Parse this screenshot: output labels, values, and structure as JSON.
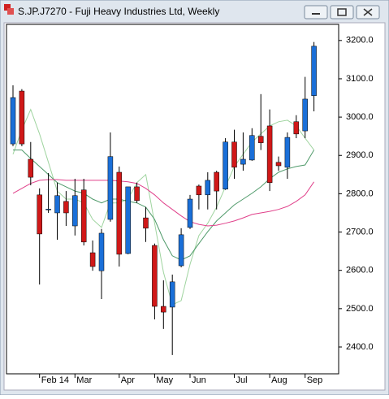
{
  "window": {
    "title": "S.JP.J7270 - Fuji Heavy Industries Ltd, Weekly"
  },
  "chart_data": {
    "type": "candlestick",
    "categories": [
      "Feb 14",
      "Mar",
      "Apr",
      "May",
      "Jun",
      "Jul",
      "Aug",
      "Sep"
    ],
    "category_index": [
      3,
      7,
      12,
      16,
      20,
      25,
      29,
      33
    ],
    "open": [
      2930,
      3068,
      2890,
      2797,
      2759,
      2750,
      2780,
      2716,
      2810,
      2646,
      2599,
      2733,
      2856,
      2644,
      2818,
      2737,
      2665,
      2506,
      2504,
      2612,
      2712,
      2820,
      2797,
      2856,
      2812,
      2935,
      2877,
      2888,
      2950,
      2977,
      2882,
      2869,
      2988,
      2964,
      3056
    ],
    "high": [
      3083,
      3073,
      2935,
      2814,
      2854,
      2829,
      2807,
      2839,
      2839,
      2678,
      2708,
      2960,
      2871,
      2818,
      2829,
      2765,
      2670,
      2574,
      2589,
      2710,
      2797,
      2824,
      2856,
      2860,
      2945,
      2967,
      2960,
      2971,
      3060,
      3020,
      2897,
      2960,
      3005,
      3105,
      3196
    ],
    "low": [
      2924,
      2924,
      2822,
      2563,
      2750,
      2680,
      2716,
      2691,
      2665,
      2599,
      2525,
      2727,
      2610,
      2642,
      2776,
      2674,
      2472,
      2447,
      2379,
      2608,
      2708,
      2759,
      2759,
      2759,
      2810,
      2839,
      2860,
      2886,
      2914,
      2807,
      2860,
      2839,
      2945,
      2945,
      3015
    ],
    "close": [
      3051,
      2930,
      2843,
      2695,
      2760,
      2795,
      2750,
      2795,
      2674,
      2610,
      2697,
      2897,
      2642,
      2818,
      2782,
      2710,
      2506,
      2491,
      2570,
      2693,
      2786,
      2797,
      2835,
      2807,
      2935,
      2869,
      2890,
      2952,
      2933,
      2829,
      2873,
      2947,
      2956,
      3047,
      3185
    ],
    "up_color": "#1a6fd8",
    "down_color": "#d01818",
    "lines": [
      {
        "color": "#9fd49f",
        "values": [
          2903,
          2967,
          3020,
          2956,
          2882,
          2807,
          2786,
          2786,
          2776,
          2733,
          2712,
          2776,
          2776,
          2786,
          2829,
          2850,
          2723,
          2595,
          2510,
          2521,
          2616,
          2691,
          2723,
          2765,
          2818,
          2871,
          2903,
          2935,
          2956,
          2977,
          2988,
          2992,
          2977,
          2945,
          2914
        ]
      },
      {
        "color": "#4f9a6a",
        "values": [
          2914,
          2914,
          2892,
          2871,
          2850,
          2829,
          2818,
          2807,
          2801,
          2786,
          2776,
          2786,
          2786,
          2780,
          2776,
          2765,
          2733,
          2680,
          2638,
          2627,
          2638,
          2670,
          2701,
          2729,
          2750,
          2771,
          2786,
          2801,
          2818,
          2839,
          2856,
          2865,
          2871,
          2875,
          2914
        ]
      },
      {
        "color": "#e0408a",
        "values": [
          2801,
          2814,
          2827,
          2835,
          2837,
          2837,
          2835,
          2835,
          2835,
          2835,
          2835,
          2835,
          2833,
          2831,
          2827,
          2814,
          2797,
          2776,
          2759,
          2742,
          2727,
          2720,
          2716,
          2718,
          2723,
          2729,
          2737,
          2746,
          2750,
          2754,
          2759,
          2767,
          2780,
          2797,
          2831
        ]
      }
    ],
    "ylim": [
      2330,
      3242
    ],
    "yticks": [
      {
        "value": 2400,
        "label": "2400.0"
      },
      {
        "value": 2500,
        "label": "2500.0"
      },
      {
        "value": 2600,
        "label": "2600.0"
      },
      {
        "value": 2700,
        "label": "2700.0"
      },
      {
        "value": 2800,
        "label": "2800.0"
      },
      {
        "value": 2900,
        "label": "2900.0"
      },
      {
        "value": 3000,
        "label": "3000.0"
      },
      {
        "value": 3100,
        "label": "3100.0"
      },
      {
        "value": 3200,
        "label": "3200.0"
      }
    ]
  }
}
